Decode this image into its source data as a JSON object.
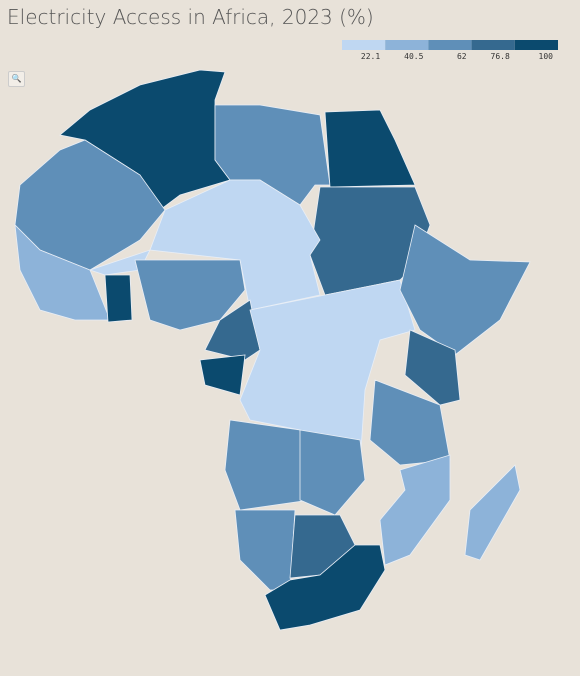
{
  "header": {
    "title": "Electricity Access in Africa, 2023 (%)"
  },
  "legend": {
    "ticks": [
      22.1,
      40.5,
      62,
      76.8,
      100
    ],
    "colors": [
      "#bfd7f2",
      "#8db3d9",
      "#5f8fb8",
      "#35698f",
      "#0b4a6e"
    ]
  }
}
